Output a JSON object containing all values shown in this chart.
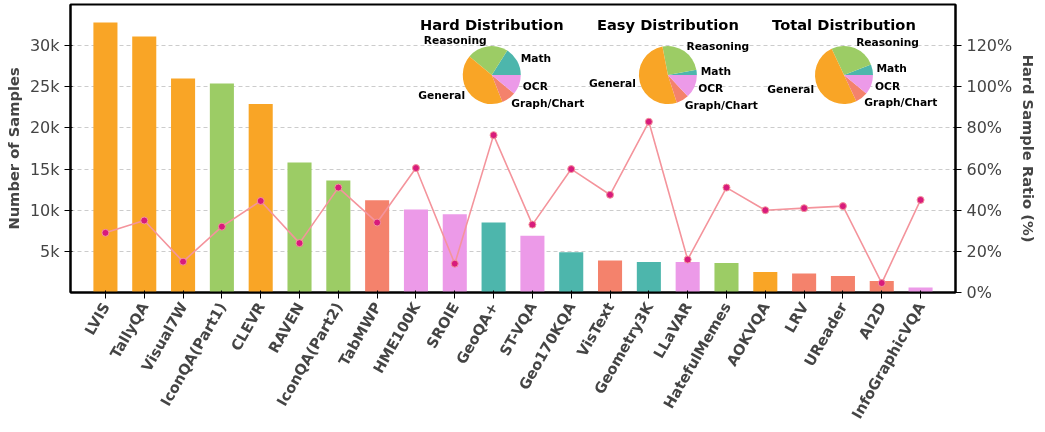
{
  "chart_data": [
    {
      "type": "bar",
      "categories": [
        "LVIS",
        "TallyQA",
        "Visual7W",
        "IconQA(Part1)",
        "CLEVR",
        "RAVEN",
        "IconQA(Part2)",
        "TabMWP",
        "HME100K",
        "SROIE",
        "GeoQA+",
        "ST-VQA",
        "Geo170KQA",
        "VisText",
        "Geometry3K",
        "LLaVAR",
        "HatefulMemes",
        "AOKVQA",
        "LRV",
        "UReader",
        "AI2D",
        "InfoGraphicVQA"
      ],
      "ylabel": "Number of Samples",
      "y2label": "Hard Sample Ratio (%)",
      "ylim": [
        0,
        35000
      ],
      "yticks": [
        {
          "value": 5000,
          "label": "5k"
        },
        {
          "value": 10000,
          "label": "10k"
        },
        {
          "value": 15000,
          "label": "15k"
        },
        {
          "value": 20000,
          "label": "20k"
        },
        {
          "value": 25000,
          "label": "25k"
        },
        {
          "value": 30000,
          "label": "30k"
        }
      ],
      "y2lim": [
        0,
        140
      ],
      "y2ticks": [
        {
          "value": 0,
          "label": "0%"
        },
        {
          "value": 20,
          "label": "20%"
        },
        {
          "value": 40,
          "label": "40%"
        },
        {
          "value": 60,
          "label": "60%"
        },
        {
          "value": 80,
          "label": "80%"
        },
        {
          "value": 100,
          "label": "100%"
        },
        {
          "value": 120,
          "label": "120%"
        }
      ],
      "grid": "y",
      "series": [
        {
          "type": "bar",
          "colors": [
            "#f9a526",
            "#f9a526",
            "#f9a526",
            "#9ccc65",
            "#f9a526",
            "#9ccc65",
            "#9ccc65",
            "#f4826c",
            "#ec9ae8",
            "#ec9ae8",
            "#4db6ac",
            "#ec9ae8",
            "#4db6ac",
            "#f4826c",
            "#4db6ac",
            "#ec9ae8",
            "#9ccc65",
            "#f9a526",
            "#f4826c",
            "#f4826c",
            "#f4826c",
            "#ec9ae8"
          ],
          "values": [
            32800,
            31100,
            26000,
            25400,
            22900,
            15800,
            13600,
            11200,
            10100,
            9500,
            8500,
            6900,
            4900,
            3900,
            3700,
            3700,
            3600,
            2500,
            2300,
            2000,
            1400,
            600
          ]
        },
        {
          "type": "line",
          "axis": "y2",
          "color": "#f4949c",
          "marker": "circle",
          "values": [
            29,
            35,
            15,
            32,
            44.5,
            24,
            51,
            34,
            60.5,
            14,
            76.5,
            33,
            60,
            47.5,
            83,
            16,
            51,
            40,
            41,
            42,
            4.6,
            45
          ]
        }
      ]
    },
    {
      "type": "pie",
      "title": "Hard Distribution",
      "categories": [
        "Math",
        "Reasoning",
        "General",
        "Graph/Chart",
        "OCR"
      ],
      "values": [
        16,
        23,
        42,
        8,
        11
      ],
      "colors": [
        "#4db6ac",
        "#9ccc65",
        "#f9a526",
        "#f4826c",
        "#ec9ae8"
      ]
    },
    {
      "type": "pie",
      "title": "Easy Distribution",
      "categories": [
        "Math",
        "Reasoning",
        "General",
        "Graph/Chart",
        "OCR"
      ],
      "values": [
        3,
        25,
        52,
        7,
        13
      ],
      "colors": [
        "#4db6ac",
        "#9ccc65",
        "#f9a526",
        "#f4826c",
        "#ec9ae8"
      ]
    },
    {
      "type": "pie",
      "title": "Total Distribution",
      "categories": [
        "Math",
        "Reasoning",
        "General",
        "Graph/Chart",
        "OCR"
      ],
      "values": [
        6,
        26,
        50,
        7,
        11
      ],
      "colors": [
        "#4db6ac",
        "#9ccc65",
        "#f9a526",
        "#f4826c",
        "#ec9ae8"
      ]
    }
  ]
}
